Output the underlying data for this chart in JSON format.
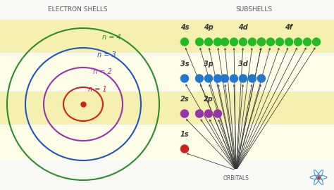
{
  "bg_color": "#f8f8f4",
  "title_left": "ELECTRON SHELLS",
  "title_right": "SUBSHELLS",
  "shell_colors": [
    "#2e8b2e",
    "#2255bb",
    "#9933aa",
    "#cc2222"
  ],
  "nucleus_color": "#cc2222",
  "subshell_rows": [
    {
      "subshells": [
        {
          "name": "4s",
          "dots": 1,
          "color": "#22bb22"
        },
        {
          "name": "4p",
          "dots": 3,
          "color": "#22bb22"
        },
        {
          "name": "4d",
          "dots": 5,
          "color": "#22bb22"
        },
        {
          "name": "4f",
          "dots": 7,
          "color": "#22bb22"
        }
      ]
    },
    {
      "subshells": [
        {
          "name": "3s",
          "dots": 1,
          "color": "#2277cc"
        },
        {
          "name": "3p",
          "dots": 3,
          "color": "#2277cc"
        },
        {
          "name": "3d",
          "dots": 5,
          "color": "#2277cc"
        }
      ]
    },
    {
      "subshells": [
        {
          "name": "2s",
          "dots": 1,
          "color": "#9933aa"
        },
        {
          "name": "2p",
          "dots": 3,
          "color": "#9933aa"
        }
      ]
    },
    {
      "subshells": [
        {
          "name": "1s",
          "dots": 1,
          "color": "#cc2222"
        }
      ]
    }
  ],
  "row_bg_colors": [
    "#f5f0b0",
    "#fdfde8",
    "#f5f0b0",
    "#fdfde8"
  ],
  "atom_icon_color": "#4499cc"
}
